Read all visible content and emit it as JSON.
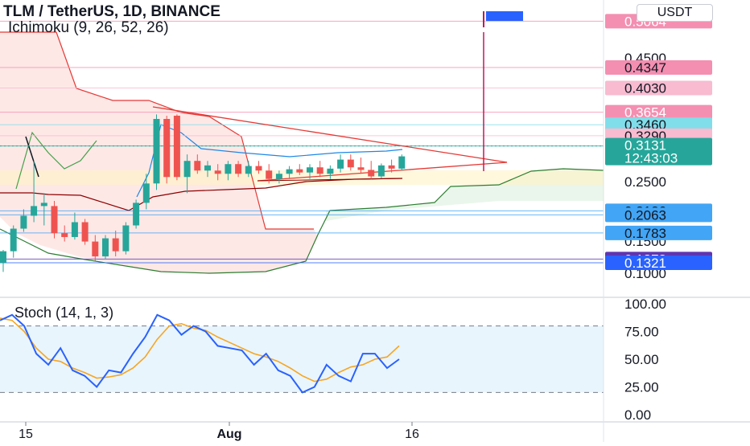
{
  "header": {
    "title": "TLM / TetherUS, 1D, BINANCE",
    "indicator": "Ichimoku (9, 26, 52, 26)",
    "currency": "USDT"
  },
  "colors": {
    "up": "#26a69a",
    "down": "#ef5350",
    "stoch_k": "#2962ff",
    "stoch_d": "#f5a623",
    "cloud_red": "#fde0de",
    "cloud_green": "#e8f5e9",
    "grid": "#e0e3eb"
  },
  "price_axis": {
    "ticks": [
      "0.4500",
      "0.2500",
      "0.1500",
      "0.1000"
    ],
    "labels": [
      {
        "value": 0.5064,
        "text": "0.5064",
        "color": "#f48fb1",
        "text_color": "#ffffff"
      },
      {
        "value": 0.4347,
        "text": "0.4347",
        "color": "#f48fb1",
        "text_color": "#131722"
      },
      {
        "value": 0.403,
        "text": "0.4030",
        "color": "#f8bbd0",
        "text_color": "#131722"
      },
      {
        "value": 0.3654,
        "text": "0.3654",
        "color": "#f48fb1",
        "text_color": "#ffffff"
      },
      {
        "value": 0.346,
        "text": "0.3460",
        "color": "#80deea",
        "text_color": "#131722"
      },
      {
        "value": 0.329,
        "text": "0.3290",
        "color": "#f8bbd0",
        "text_color": "#131722"
      },
      {
        "value": 0.3131,
        "text": "0.3131",
        "color": "#26a69a",
        "text_color": "#ffffff",
        "sub": "12:43:03"
      },
      {
        "value": 0.2126,
        "text": "0.2126",
        "color": "#42a5f5",
        "text_color": "#131722"
      },
      {
        "value": 0.2063,
        "text": "0.2063",
        "color": "#42a5f5",
        "text_color": "#131722"
      },
      {
        "value": 0.1783,
        "text": "0.1783",
        "color": "#42a5f5",
        "text_color": "#131722"
      },
      {
        "value": 0.1378,
        "text": "0.1378",
        "color": "#5e35b1",
        "text_color": "#ffffff"
      },
      {
        "value": 0.1321,
        "text": "0.1321",
        "color": "#2962ff",
        "text_color": "#ffffff"
      }
    ]
  },
  "stoch_axis": {
    "ticks": [
      "100.00",
      "75.00",
      "50.00",
      "25.00",
      "0.00"
    ]
  },
  "stoch": {
    "title": "Stoch (14, 1, 3)"
  },
  "x_axis": {
    "ticks": [
      "15",
      "Aug",
      "16"
    ]
  },
  "chart_data": {
    "type": "candlestick",
    "title": "TLM / TetherUS, 1D, BINANCE",
    "price_range": [
      0.085,
      0.52
    ],
    "candles": [
      {
        "o": 0.132,
        "h": 0.152,
        "l": 0.118,
        "c": 0.15
      },
      {
        "o": 0.15,
        "h": 0.19,
        "l": 0.14,
        "c": 0.185
      },
      {
        "o": 0.185,
        "h": 0.215,
        "l": 0.18,
        "c": 0.205
      },
      {
        "o": 0.205,
        "h": 0.29,
        "l": 0.195,
        "c": 0.22
      },
      {
        "o": 0.22,
        "h": 0.24,
        "l": 0.19,
        "c": 0.225
      },
      {
        "o": 0.22,
        "h": 0.228,
        "l": 0.17,
        "c": 0.178
      },
      {
        "o": 0.178,
        "h": 0.19,
        "l": 0.165,
        "c": 0.172
      },
      {
        "o": 0.172,
        "h": 0.21,
        "l": 0.168,
        "c": 0.195
      },
      {
        "o": 0.195,
        "h": 0.2,
        "l": 0.16,
        "c": 0.165
      },
      {
        "o": 0.165,
        "h": 0.175,
        "l": 0.135,
        "c": 0.142
      },
      {
        "o": 0.142,
        "h": 0.175,
        "l": 0.138,
        "c": 0.17
      },
      {
        "o": 0.17,
        "h": 0.182,
        "l": 0.142,
        "c": 0.15
      },
      {
        "o": 0.15,
        "h": 0.195,
        "l": 0.145,
        "c": 0.19
      },
      {
        "o": 0.19,
        "h": 0.23,
        "l": 0.185,
        "c": 0.225
      },
      {
        "o": 0.225,
        "h": 0.27,
        "l": 0.215,
        "c": 0.255
      },
      {
        "o": 0.255,
        "h": 0.362,
        "l": 0.245,
        "c": 0.355
      },
      {
        "o": 0.355,
        "h": 0.36,
        "l": 0.255,
        "c": 0.265
      },
      {
        "o": 0.36,
        "h": 0.362,
        "l": 0.26,
        "c": 0.265
      },
      {
        "o": 0.265,
        "h": 0.3,
        "l": 0.24,
        "c": 0.29
      },
      {
        "o": 0.29,
        "h": 0.3,
        "l": 0.27,
        "c": 0.275
      },
      {
        "o": 0.275,
        "h": 0.29,
        "l": 0.265,
        "c": 0.283
      },
      {
        "o": 0.275,
        "h": 0.285,
        "l": 0.26,
        "c": 0.27
      },
      {
        "o": 0.27,
        "h": 0.29,
        "l": 0.26,
        "c": 0.285
      },
      {
        "o": 0.285,
        "h": 0.29,
        "l": 0.265,
        "c": 0.27
      },
      {
        "o": 0.27,
        "h": 0.29,
        "l": 0.265,
        "c": 0.282
      },
      {
        "o": 0.282,
        "h": 0.29,
        "l": 0.27,
        "c": 0.275
      },
      {
        "o": 0.275,
        "h": 0.285,
        "l": 0.255,
        "c": 0.262
      },
      {
        "o": 0.262,
        "h": 0.275,
        "l": 0.255,
        "c": 0.27
      },
      {
        "o": 0.27,
        "h": 0.282,
        "l": 0.262,
        "c": 0.277
      },
      {
        "o": 0.277,
        "h": 0.285,
        "l": 0.268,
        "c": 0.272
      },
      {
        "o": 0.272,
        "h": 0.285,
        "l": 0.262,
        "c": 0.28
      },
      {
        "o": 0.28,
        "h": 0.29,
        "l": 0.265,
        "c": 0.27
      },
      {
        "o": 0.27,
        "h": 0.283,
        "l": 0.262,
        "c": 0.278
      },
      {
        "o": 0.278,
        "h": 0.3,
        "l": 0.272,
        "c": 0.292
      },
      {
        "o": 0.292,
        "h": 0.3,
        "l": 0.275,
        "c": 0.28
      },
      {
        "o": 0.28,
        "h": 0.295,
        "l": 0.27,
        "c": 0.276
      },
      {
        "o": 0.276,
        "h": 0.29,
        "l": 0.262,
        "c": 0.266
      },
      {
        "o": 0.266,
        "h": 0.286,
        "l": 0.263,
        "c": 0.283
      },
      {
        "o": 0.283,
        "h": 0.292,
        "l": 0.272,
        "c": 0.278
      },
      {
        "o": 0.278,
        "h": 0.3,
        "l": 0.275,
        "c": 0.297
      }
    ],
    "stoch_k": [
      85,
      90,
      80,
      55,
      45,
      60,
      40,
      35,
      25,
      40,
      38,
      55,
      70,
      90,
      85,
      72,
      80,
      75,
      62,
      60,
      58,
      45,
      55,
      40,
      35,
      20,
      25,
      45,
      35,
      30,
      55,
      55,
      42,
      50
    ],
    "stoch_d": [
      87,
      85,
      75,
      60,
      50,
      48,
      42,
      38,
      33,
      34,
      36,
      42,
      52,
      68,
      80,
      82,
      78,
      76,
      70,
      65,
      60,
      55,
      52,
      48,
      42,
      35,
      30,
      32,
      38,
      43,
      45,
      50,
      52,
      62
    ]
  }
}
